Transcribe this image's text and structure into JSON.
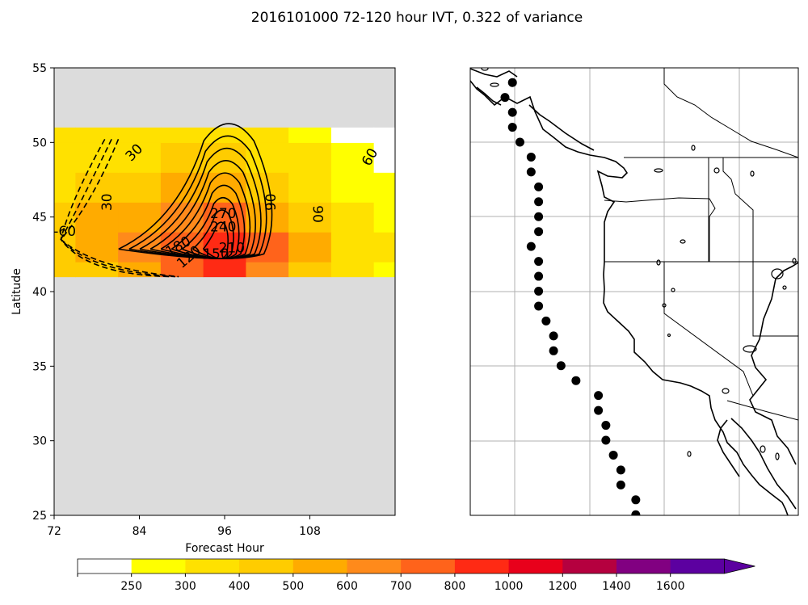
{
  "title": "2016101000 72-120 hour IVT, 0.322 of variance",
  "chart_data": [
    {
      "type": "heatmap",
      "panel": "hovmoller",
      "xlabel": "Forecast Hour",
      "ylabel": "Latitude",
      "xlim": [
        72,
        120
      ],
      "ylim": [
        25,
        55
      ],
      "x_ticks": [
        "72",
        "84",
        "96",
        "108"
      ],
      "y_ticks": [
        "25",
        "30",
        "35",
        "40",
        "45",
        "50",
        "55"
      ],
      "data_lat_range": [
        41,
        51
      ],
      "data_hour_range": [
        72,
        120
      ],
      "ivt_field": {
        "hours": [
          72,
          78,
          84,
          90,
          96,
          102,
          108,
          114,
          120
        ],
        "lats": [
          41,
          43,
          45,
          47,
          49,
          51
        ],
        "values": [
          [
            420,
            470,
            560,
            700,
            880,
            650,
            480,
            330,
            290
          ],
          [
            450,
            520,
            620,
            760,
            950,
            720,
            500,
            360,
            300
          ],
          [
            430,
            500,
            580,
            640,
            700,
            560,
            430,
            320,
            280
          ],
          [
            380,
            430,
            470,
            500,
            520,
            450,
            360,
            290,
            260
          ],
          [
            330,
            360,
            380,
            400,
            420,
            360,
            300,
            250,
            230
          ],
          [
            300,
            330,
            340,
            330,
            320,
            300,
            260,
            220,
            200
          ]
        ]
      },
      "contour_labels": [
        "30",
        "30",
        "-60",
        "60",
        "90",
        "90",
        "270",
        "240",
        "210",
        "150",
        "180",
        "120"
      ],
      "contour_levels": [
        -90,
        -60,
        -30,
        30,
        60,
        90,
        120,
        150,
        180,
        210,
        240,
        270
      ],
      "no_data_color": "#dcdcdc"
    },
    {
      "type": "scatter",
      "panel": "map",
      "region": "US West Coast",
      "points": [
        {
          "lat": 54.0,
          "lon": -130.3
        },
        {
          "lat": 53.0,
          "lon": -131.3
        },
        {
          "lat": 52.0,
          "lon": -130.3
        },
        {
          "lat": 51.0,
          "lon": -130.3
        },
        {
          "lat": 50.0,
          "lon": -129.3
        },
        {
          "lat": 49.0,
          "lon": -127.8
        },
        {
          "lat": 48.0,
          "lon": -127.8
        },
        {
          "lat": 47.0,
          "lon": -126.8
        },
        {
          "lat": 46.0,
          "lon": -126.8
        },
        {
          "lat": 45.0,
          "lon": -126.8
        },
        {
          "lat": 44.0,
          "lon": -126.8
        },
        {
          "lat": 43.0,
          "lon": -127.8
        },
        {
          "lat": 42.0,
          "lon": -126.8
        },
        {
          "lat": 41.0,
          "lon": -126.8
        },
        {
          "lat": 40.0,
          "lon": -126.8
        },
        {
          "lat": 39.0,
          "lon": -126.8
        },
        {
          "lat": 38.0,
          "lon": -125.8
        },
        {
          "lat": 37.0,
          "lon": -124.8
        },
        {
          "lat": 36.0,
          "lon": -124.8
        },
        {
          "lat": 35.0,
          "lon": -123.8
        },
        {
          "lat": 34.0,
          "lon": -121.8
        },
        {
          "lat": 33.0,
          "lon": -118.8
        },
        {
          "lat": 32.0,
          "lon": -118.8
        },
        {
          "lat": 31.0,
          "lon": -117.8
        },
        {
          "lat": 30.0,
          "lon": -117.8
        },
        {
          "lat": 29.0,
          "lon": -116.8
        },
        {
          "lat": 28.0,
          "lon": -115.8
        },
        {
          "lat": 27.0,
          "lon": -115.8
        },
        {
          "lat": 26.0,
          "lon": -113.8
        },
        {
          "lat": 25.0,
          "lon": -113.8
        }
      ],
      "marker_color": "#000000",
      "gridlines": true
    }
  ],
  "colorbar": {
    "tick_labels": [
      "250",
      "300",
      "400",
      "500",
      "600",
      "700",
      "800",
      "1000",
      "1200",
      "1400",
      "1600"
    ],
    "levels": [
      0,
      250,
      300,
      400,
      500,
      600,
      700,
      800,
      1000,
      1200,
      1400,
      1600
    ],
    "colors": [
      "#ffffff",
      "#ffff00",
      "#ffe100",
      "#ffcc00",
      "#ffab00",
      "#ff8a1b",
      "#ff631b",
      "#ff2a14",
      "#e8001b",
      "#b5003f",
      "#810081",
      "#5c00a0"
    ],
    "extend": "max"
  }
}
